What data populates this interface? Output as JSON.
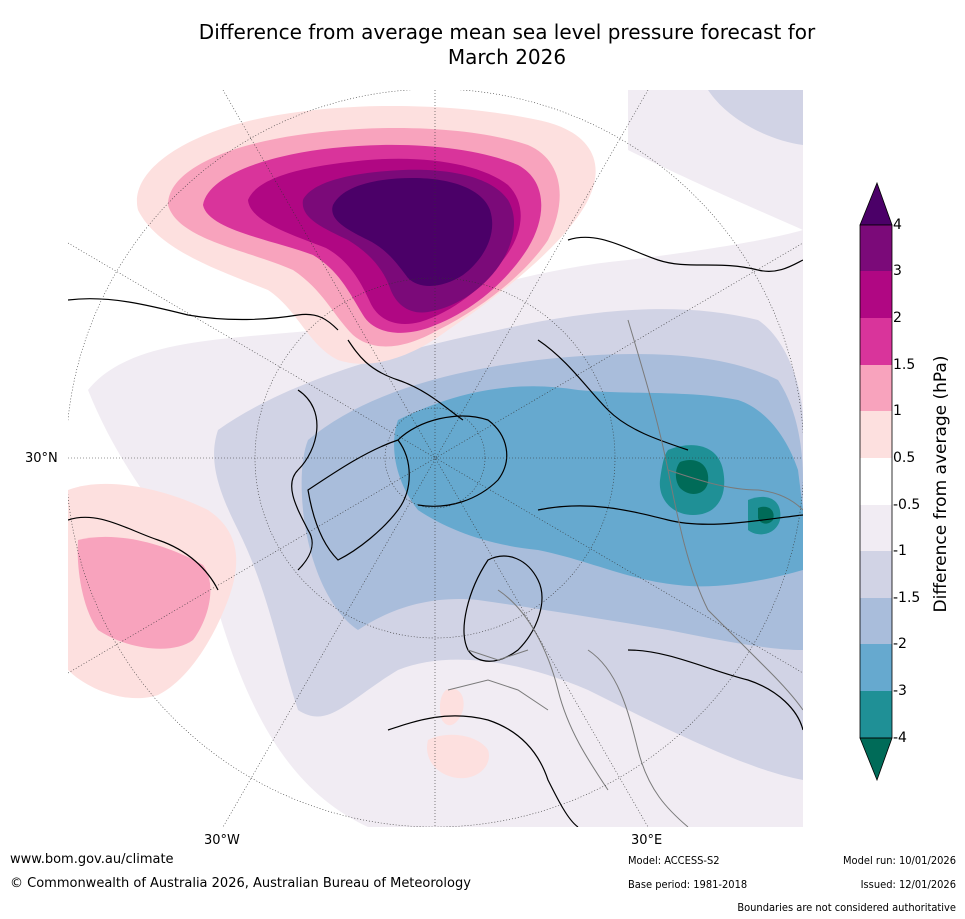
{
  "title": {
    "line1": "Difference from average mean sea level pressure forecast for",
    "line2": "March 2026"
  },
  "map": {
    "projection": "north-polar-stereographic",
    "lon_labels": [
      "30°W",
      "30°E"
    ],
    "lat_labels": [
      "30°N"
    ]
  },
  "legend": {
    "label": "Difference from average (hPa)",
    "ticks": [
      "4",
      "3",
      "2",
      "1.5",
      "1",
      "0.5",
      "-0.5",
      "-1",
      "-1.5",
      "-2",
      "-3",
      "-4"
    ],
    "colors": {
      "gt4": "#4b0068",
      "3_4": "#7b0a79",
      "2_3": "#b00783",
      "1.5_2": "#d9349b",
      "1_1.5": "#f8a3bd",
      "0.5_1": "#fde0df",
      "neutral": "#ffffff",
      "m1_m0.5": "#f1ecf3",
      "m1.5_m1": "#d1d3e5",
      "m2_m1.5": "#a9bddb",
      "m3_m2": "#66a9cf",
      "m4_m3": "#1f9096",
      "lt_m4": "#006b58"
    }
  },
  "footer": {
    "website": "www.bom.gov.au/climate",
    "copyright": "© Commonwealth of Australia 2026, Australian Bureau of Meteorology",
    "model": "Model: ACCESS-S2",
    "base_period": "Base period: 1981-2018",
    "model_run": "Model run: 10/01/2026",
    "issued": "Issued: 12/01/2026",
    "disclaimer": "Boundaries are not considered authoritative"
  }
}
